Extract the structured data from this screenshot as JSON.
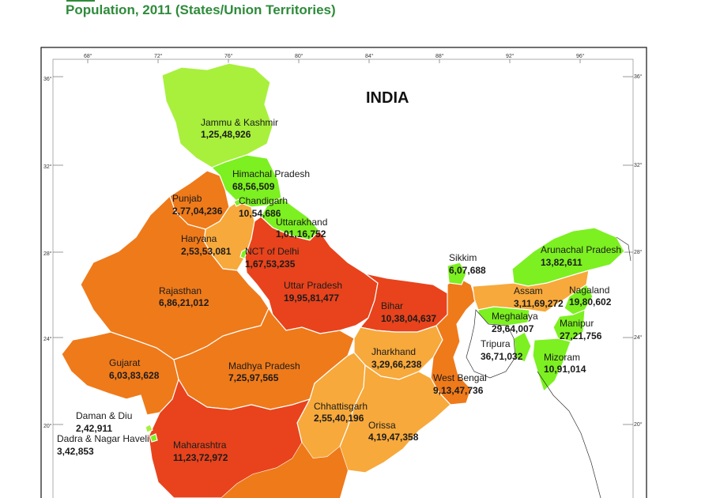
{
  "header": {
    "title": "Population, 2011 (States/Union Territories)"
  },
  "map": {
    "country_label": "INDIA",
    "colors": {
      "light_green": "#a8f03c",
      "green": "#7cf020",
      "light_orange": "#f7a93b",
      "orange": "#ef7a1a",
      "red": "#e8431c",
      "title_green": "#2e8b3a"
    },
    "longitude_ticks": [
      "68°",
      "72°",
      "76°",
      "80°",
      "84°",
      "88°",
      "92°",
      "96°"
    ],
    "latitude_ticks": [
      "36°",
      "32°",
      "28°",
      "24°",
      "20°"
    ],
    "regions": {
      "jk": {
        "name": "Jammu & Kashmir",
        "population": "1,25,48,926"
      },
      "hp": {
        "name": "Himachal Pradesh",
        "population": "68,56,509"
      },
      "punjab": {
        "name": "Punjab",
        "population": "2,77,04,236"
      },
      "chandigarh": {
        "name": "Chandigarh",
        "population": "10,54,686"
      },
      "uttarakhand": {
        "name": "Uttarakhand",
        "population": "1,01,16,752"
      },
      "haryana": {
        "name": "Haryana",
        "population": "2,53,53,081"
      },
      "delhi": {
        "name": "NCT of Delhi",
        "population": "1,67,53,235"
      },
      "rajasthan": {
        "name": "Rajasthan",
        "population": "6,86,21,012"
      },
      "up": {
        "name": "Uttar Pradesh",
        "population": "19,95,81,477"
      },
      "bihar": {
        "name": "Bihar",
        "population": "10,38,04,637"
      },
      "sikkim": {
        "name": "Sikkim",
        "population": "6,07,688"
      },
      "arunachal": {
        "name": "Arunachal Pradesh",
        "population": "13,82,611"
      },
      "assam": {
        "name": "Assam",
        "population": "3,11,69,272"
      },
      "nagaland": {
        "name": "Nagaland",
        "population": "19,80,602"
      },
      "meghalaya": {
        "name": "Meghalaya",
        "population": "29,64,007"
      },
      "manipur": {
        "name": "Manipur",
        "population": "27,21,756"
      },
      "tripura": {
        "name": "Tripura",
        "population": "36,71,032"
      },
      "mizoram": {
        "name": "Mizoram",
        "population": "10,91,014"
      },
      "gujarat": {
        "name": "Gujarat",
        "population": "6,03,83,628"
      },
      "mp": {
        "name": "Madhya Pradesh",
        "population": "7,25,97,565"
      },
      "jharkhand": {
        "name": "Jharkhand",
        "population": "3,29,66,238"
      },
      "wb": {
        "name": "West Bengal",
        "population": "9,13,47,736"
      },
      "chhattisgarh": {
        "name": "Chhattisgarh",
        "population": "2,55,40,196"
      },
      "daman": {
        "name": "Daman & Diu",
        "population": "2,42,911"
      },
      "dadra": {
        "name": "Dadra & Nagar Haveli",
        "population": "3,42,853"
      },
      "orissa": {
        "name": "Orissa",
        "population": "4,19,47,358"
      },
      "maharashtra": {
        "name": "Maharashtra",
        "population": "11,23,72,972"
      }
    }
  }
}
